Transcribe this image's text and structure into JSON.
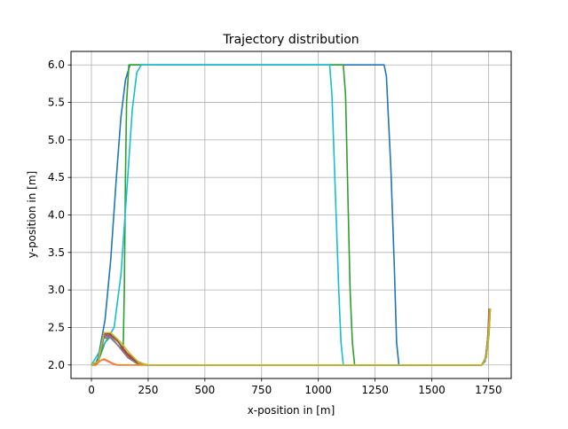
{
  "chart_data": {
    "type": "line",
    "title": "Trajectory distribution",
    "xlabel": "x-position in [m]",
    "ylabel": "y-position in [m]",
    "xlim": [
      -90,
      1850
    ],
    "ylim": [
      1.82,
      6.18
    ],
    "xticks": [
      0,
      250,
      500,
      750,
      1000,
      1250,
      1500,
      1750
    ],
    "yticks": [
      2.0,
      2.5,
      3.0,
      3.5,
      4.0,
      4.5,
      5.0,
      5.5,
      6.0
    ],
    "xtick_labels": [
      "0",
      "250",
      "500",
      "750",
      "1000",
      "1250",
      "1500",
      "1750"
    ],
    "ytick_labels": [
      "2.0",
      "2.5",
      "3.0",
      "3.5",
      "4.0",
      "4.5",
      "5.0",
      "5.5",
      "6.0"
    ],
    "grid": true,
    "series": [
      {
        "color": "#1f77b4",
        "points": [
          [
            0,
            2.0
          ],
          [
            15,
            2.0
          ],
          [
            30,
            2.1
          ],
          [
            60,
            2.6
          ],
          [
            85,
            3.4
          ],
          [
            110,
            4.5
          ],
          [
            130,
            5.3
          ],
          [
            150,
            5.8
          ],
          [
            170,
            6.0
          ],
          [
            1290,
            6.0
          ],
          [
            1300,
            5.85
          ],
          [
            1320,
            4.6
          ],
          [
            1335,
            3.3
          ],
          [
            1345,
            2.3
          ],
          [
            1355,
            2.0
          ],
          [
            1720,
            2.0
          ],
          [
            1735,
            2.05
          ],
          [
            1745,
            2.3
          ],
          [
            1755,
            2.75
          ]
        ]
      },
      {
        "color": "#2ca02c",
        "points": [
          [
            0,
            2.0
          ],
          [
            30,
            2.05
          ],
          [
            60,
            2.3
          ],
          [
            90,
            2.4
          ],
          [
            120,
            2.3
          ],
          [
            140,
            2.2
          ],
          [
            145,
            3.0
          ],
          [
            150,
            4.5
          ],
          [
            155,
            5.5
          ],
          [
            165,
            6.0
          ],
          [
            1110,
            6.0
          ],
          [
            1120,
            5.6
          ],
          [
            1130,
            4.3
          ],
          [
            1140,
            3.0
          ],
          [
            1150,
            2.3
          ],
          [
            1160,
            2.0
          ],
          [
            1720,
            2.0
          ],
          [
            1740,
            2.1
          ],
          [
            1752,
            2.4
          ],
          [
            1758,
            2.75
          ]
        ]
      },
      {
        "color": "#17becf",
        "points": [
          [
            0,
            2.0
          ],
          [
            40,
            2.2
          ],
          [
            70,
            2.35
          ],
          [
            100,
            2.5
          ],
          [
            130,
            3.2
          ],
          [
            160,
            4.5
          ],
          [
            180,
            5.4
          ],
          [
            200,
            5.9
          ],
          [
            220,
            6.0
          ],
          [
            1050,
            6.0
          ],
          [
            1060,
            5.6
          ],
          [
            1075,
            4.3
          ],
          [
            1090,
            3.0
          ],
          [
            1100,
            2.3
          ],
          [
            1110,
            2.0
          ],
          [
            1720,
            2.0
          ],
          [
            1740,
            2.1
          ],
          [
            1752,
            2.4
          ],
          [
            1758,
            2.75
          ]
        ]
      },
      {
        "color": "#d62728",
        "points": [
          [
            0,
            2.0
          ],
          [
            30,
            2.05
          ],
          [
            55,
            2.42
          ],
          [
            80,
            2.42
          ],
          [
            110,
            2.35
          ],
          [
            140,
            2.2
          ],
          [
            170,
            2.1
          ],
          [
            210,
            2.02
          ],
          [
            250,
            2.0
          ],
          [
            1720,
            2.0
          ],
          [
            1740,
            2.1
          ],
          [
            1750,
            2.4
          ],
          [
            1755,
            2.75
          ]
        ]
      },
      {
        "color": "#9467bd",
        "points": [
          [
            0,
            2.0
          ],
          [
            30,
            2.05
          ],
          [
            55,
            2.38
          ],
          [
            85,
            2.38
          ],
          [
            120,
            2.25
          ],
          [
            160,
            2.1
          ],
          [
            200,
            2.02
          ],
          [
            240,
            2.0
          ],
          [
            1720,
            2.0
          ],
          [
            1738,
            2.1
          ],
          [
            1748,
            2.4
          ],
          [
            1754,
            2.75
          ]
        ]
      },
      {
        "color": "#8c564b",
        "points": [
          [
            0,
            2.0
          ],
          [
            30,
            2.05
          ],
          [
            55,
            2.4
          ],
          [
            85,
            2.4
          ],
          [
            120,
            2.3
          ],
          [
            160,
            2.15
          ],
          [
            200,
            2.05
          ],
          [
            240,
            2.0
          ],
          [
            1720,
            2.0
          ],
          [
            1738,
            2.1
          ],
          [
            1748,
            2.4
          ],
          [
            1752,
            2.75
          ]
        ]
      },
      {
        "color": "#7f7f7f",
        "points": [
          [
            0,
            2.0
          ],
          [
            30,
            2.05
          ],
          [
            55,
            2.36
          ],
          [
            85,
            2.36
          ],
          [
            120,
            2.25
          ],
          [
            160,
            2.1
          ],
          [
            200,
            2.02
          ],
          [
            240,
            2.0
          ],
          [
            1720,
            2.0
          ],
          [
            1740,
            2.1
          ],
          [
            1750,
            2.4
          ],
          [
            1755,
            2.75
          ]
        ]
      },
      {
        "color": "#e377c2",
        "points": [
          [
            0,
            2.0
          ],
          [
            20,
            2.0
          ],
          [
            40,
            2.06
          ],
          [
            55,
            2.07
          ],
          [
            70,
            2.05
          ],
          [
            90,
            2.02
          ],
          [
            110,
            2.0
          ],
          [
            1720,
            2.0
          ],
          [
            1740,
            2.1
          ],
          [
            1750,
            2.4
          ],
          [
            1756,
            2.75
          ]
        ]
      },
      {
        "color": "#ff7f0e",
        "points": [
          [
            0,
            2.0
          ],
          [
            20,
            2.0
          ],
          [
            40,
            2.06
          ],
          [
            55,
            2.08
          ],
          [
            70,
            2.06
          ],
          [
            95,
            2.02
          ],
          [
            115,
            2.0
          ],
          [
            1720,
            2.0
          ],
          [
            1740,
            2.1
          ],
          [
            1750,
            2.4
          ],
          [
            1756,
            2.75
          ]
        ]
      },
      {
        "color": "#bcbd22",
        "points": [
          [
            0,
            2.0
          ],
          [
            30,
            2.05
          ],
          [
            55,
            2.43
          ],
          [
            85,
            2.43
          ],
          [
            130,
            2.3
          ],
          [
            170,
            2.15
          ],
          [
            210,
            2.03
          ],
          [
            250,
            2.0
          ],
          [
            1720,
            2.0
          ],
          [
            1740,
            2.1
          ],
          [
            1752,
            2.4
          ],
          [
            1758,
            2.75
          ]
        ]
      }
    ]
  }
}
